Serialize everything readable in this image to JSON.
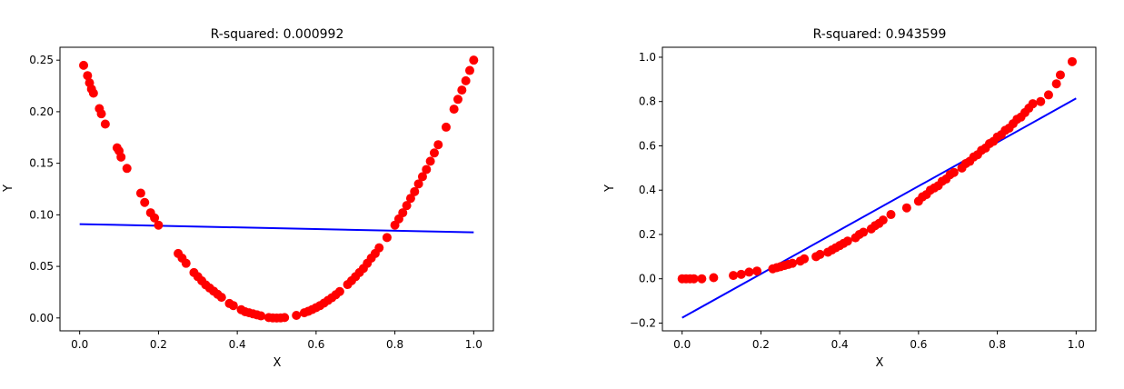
{
  "chart_data": [
    {
      "type": "scatter",
      "title": "R-squared: 0.000992",
      "xlabel": "X",
      "ylabel": "Y",
      "xlim": [
        -0.05,
        1.05
      ],
      "ylim": [
        -0.0125,
        0.2625
      ],
      "xticks": [
        0.0,
        0.2,
        0.4,
        0.6,
        0.8,
        1.0
      ],
      "xtick_labels": [
        "0.0",
        "0.2",
        "0.4",
        "0.6",
        "0.8",
        "1.0"
      ],
      "yticks": [
        0.0,
        0.05,
        0.1,
        0.15,
        0.2,
        0.25
      ],
      "ytick_labels": [
        "0.00",
        "0.05",
        "0.10",
        "0.15",
        "0.20",
        "0.25"
      ],
      "grid": false,
      "scatter_color": "#ff0000",
      "line_color": "#0000ff",
      "points": {
        "x": [
          0.01,
          0.02,
          0.025,
          0.03,
          0.035,
          0.05,
          0.055,
          0.065,
          0.095,
          0.1,
          0.105,
          0.12,
          0.155,
          0.165,
          0.18,
          0.19,
          0.2,
          0.25,
          0.26,
          0.27,
          0.29,
          0.3,
          0.31,
          0.32,
          0.33,
          0.34,
          0.35,
          0.36,
          0.38,
          0.39,
          0.41,
          0.42,
          0.43,
          0.44,
          0.45,
          0.46,
          0.48,
          0.49,
          0.5,
          0.51,
          0.52,
          0.55,
          0.57,
          0.58,
          0.59,
          0.6,
          0.61,
          0.62,
          0.63,
          0.64,
          0.65,
          0.66,
          0.68,
          0.69,
          0.7,
          0.71,
          0.72,
          0.73,
          0.74,
          0.75,
          0.76,
          0.78,
          0.8,
          0.81,
          0.82,
          0.83,
          0.84,
          0.85,
          0.86,
          0.87,
          0.88,
          0.89,
          0.9,
          0.91,
          0.93,
          0.95,
          0.96,
          0.97,
          0.98,
          0.99,
          1.0
        ],
        "y": [
          0.245,
          0.235,
          0.228,
          0.222,
          0.218,
          0.203,
          0.198,
          0.188,
          0.165,
          0.162,
          0.156,
          0.145,
          0.121,
          0.112,
          0.102,
          0.097,
          0.09,
          0.0625,
          0.058,
          0.053,
          0.044,
          0.04,
          0.036,
          0.032,
          0.029,
          0.026,
          0.023,
          0.02,
          0.014,
          0.012,
          0.008,
          0.006,
          0.005,
          0.004,
          0.003,
          0.002,
          0.0004,
          0.0001,
          0.0,
          0.0001,
          0.0004,
          0.0025,
          0.005,
          0.0064,
          0.0081,
          0.01,
          0.012,
          0.0144,
          0.017,
          0.0196,
          0.0225,
          0.0256,
          0.0324,
          0.0361,
          0.04,
          0.044,
          0.048,
          0.053,
          0.058,
          0.0625,
          0.068,
          0.078,
          0.09,
          0.096,
          0.102,
          0.109,
          0.116,
          0.1225,
          0.13,
          0.137,
          0.144,
          0.152,
          0.16,
          0.168,
          0.185,
          0.2025,
          0.212,
          0.221,
          0.23,
          0.24,
          0.25
        ]
      },
      "fit_line": {
        "x": [
          0.0,
          1.0
        ],
        "y": [
          0.091,
          0.083
        ]
      }
    },
    {
      "type": "scatter",
      "title": "R-squared: 0.943599",
      "xlabel": "X",
      "ylabel": "Y",
      "xlim": [
        -0.05,
        1.05
      ],
      "ylim": [
        -0.235,
        1.045
      ],
      "xticks": [
        0.0,
        0.2,
        0.4,
        0.6,
        0.8,
        1.0
      ],
      "xtick_labels": [
        "0.0",
        "0.2",
        "0.4",
        "0.6",
        "0.8",
        "1.0"
      ],
      "yticks": [
        -0.2,
        0.0,
        0.2,
        0.4,
        0.6,
        0.8,
        1.0
      ],
      "ytick_labels": [
        "−0.2",
        "0.0",
        "0.2",
        "0.4",
        "0.6",
        "0.8",
        "1.0"
      ],
      "grid": false,
      "scatter_color": "#ff0000",
      "line_color": "#0000ff",
      "points": {
        "x": [
          0.0,
          0.01,
          0.02,
          0.03,
          0.05,
          0.08,
          0.13,
          0.15,
          0.17,
          0.19,
          0.23,
          0.24,
          0.25,
          0.26,
          0.27,
          0.28,
          0.3,
          0.31,
          0.34,
          0.35,
          0.37,
          0.38,
          0.39,
          0.4,
          0.41,
          0.42,
          0.44,
          0.45,
          0.46,
          0.48,
          0.49,
          0.5,
          0.51,
          0.53,
          0.57,
          0.6,
          0.61,
          0.62,
          0.63,
          0.64,
          0.65,
          0.66,
          0.67,
          0.68,
          0.69,
          0.71,
          0.72,
          0.73,
          0.74,
          0.75,
          0.76,
          0.77,
          0.78,
          0.79,
          0.8,
          0.81,
          0.82,
          0.83,
          0.84,
          0.85,
          0.86,
          0.87,
          0.88,
          0.89,
          0.91,
          0.93,
          0.95,
          0.96,
          0.99
        ],
        "y": [
          0.0,
          0.0,
          0.0,
          0.0,
          0.0,
          0.005,
          0.015,
          0.02,
          0.03,
          0.035,
          0.045,
          0.05,
          0.055,
          0.06,
          0.065,
          0.07,
          0.08,
          0.09,
          0.1,
          0.11,
          0.12,
          0.13,
          0.14,
          0.15,
          0.16,
          0.17,
          0.185,
          0.2,
          0.21,
          0.225,
          0.24,
          0.25,
          0.265,
          0.29,
          0.32,
          0.35,
          0.37,
          0.38,
          0.4,
          0.41,
          0.42,
          0.44,
          0.45,
          0.47,
          0.48,
          0.5,
          0.52,
          0.53,
          0.55,
          0.56,
          0.58,
          0.59,
          0.61,
          0.62,
          0.64,
          0.65,
          0.67,
          0.68,
          0.7,
          0.72,
          0.73,
          0.75,
          0.77,
          0.79,
          0.8,
          0.83,
          0.88,
          0.92,
          0.98
        ]
      },
      "fit_line": {
        "x": [
          0.0,
          1.0
        ],
        "y": [
          -0.176,
          0.814
        ]
      }
    }
  ]
}
